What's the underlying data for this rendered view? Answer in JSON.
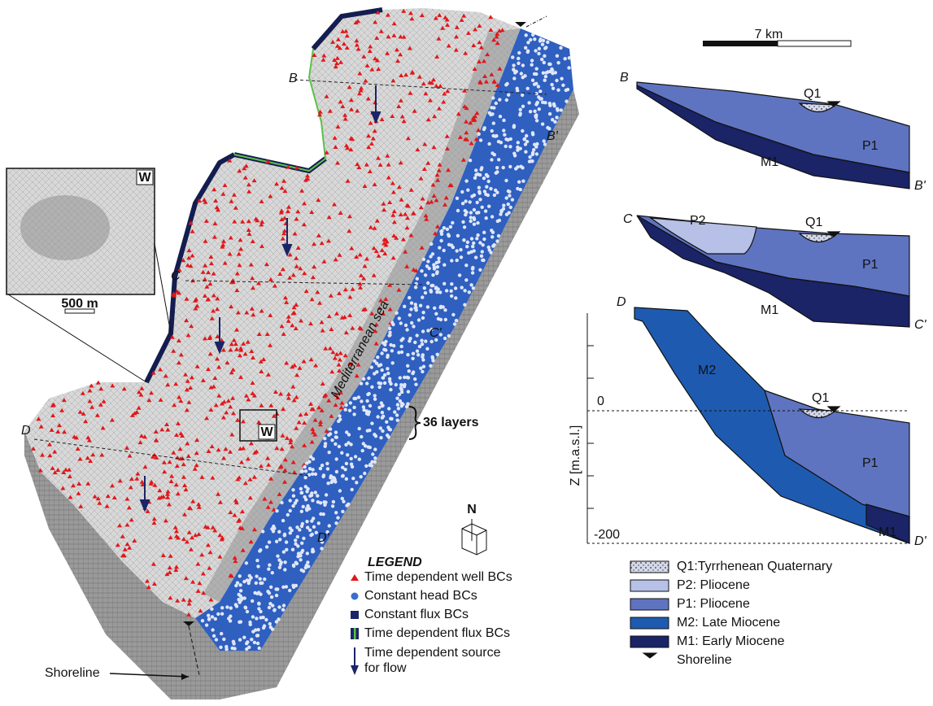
{
  "scale_bar": "7 km",
  "inset": {
    "label": "W",
    "scale": "500 m"
  },
  "model": {
    "sea": "Mediterranean sea",
    "layers": "36 layers",
    "window": "W",
    "north": "N",
    "shoreline": "Shoreline",
    "sections": [
      "B",
      "B'",
      "C",
      "C'",
      "D",
      "D'"
    ]
  },
  "legend": {
    "title": "LEGEND",
    "items": [
      "Time dependent well BCs",
      "Constant head BCs",
      "Constant flux BCs",
      "Time dependent flux BCs"
    ],
    "source": [
      "Time dependent source",
      "for flow"
    ]
  },
  "sections": [
    {
      "start": "B",
      "end": "B'",
      "units": [
        "Q1",
        "P1",
        "M1"
      ]
    },
    {
      "start": "C",
      "end": "C'",
      "units": [
        "P2",
        "Q1",
        "P1",
        "M1"
      ]
    },
    {
      "start": "D",
      "end": "D'",
      "units": [
        "M2",
        "Q1",
        "P1",
        "M1"
      ]
    }
  ],
  "section_axis": {
    "label": "Z [m.a.s.l.]",
    "ticks": [
      0,
      -200
    ]
  },
  "units_legend": [
    "Q1:Tyrrhenean Quaternary",
    "P2: Pliocene",
    "P1: Pliocene",
    "M2: Late Miocene",
    "M1: Early Miocene",
    "Shoreline"
  ]
}
